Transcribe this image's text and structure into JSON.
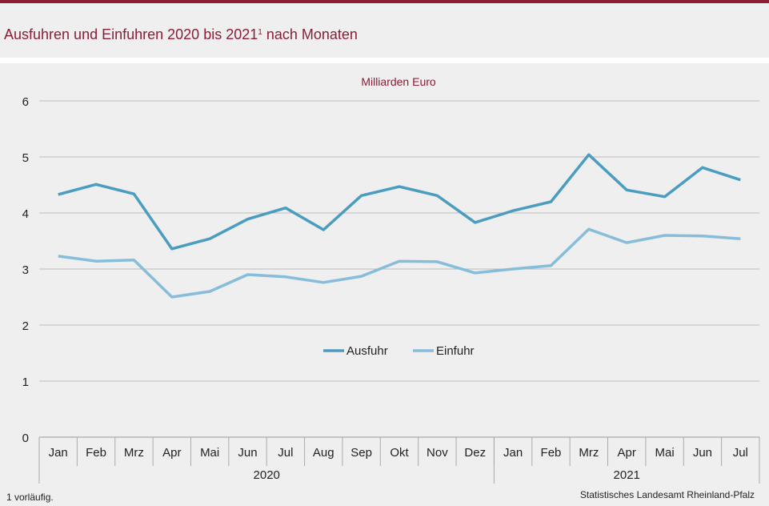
{
  "header": {
    "title": "Ausfuhren und Einfuhren 2020 bis 2021",
    "title_sup": "1",
    "title_suffix": " nach Monaten"
  },
  "footer": {
    "note": "1 vorläufig.",
    "source": "Statistisches Landesamt  Rheinland-Pfalz"
  },
  "colors": {
    "accent": "#8b1d36",
    "ausfuhr": "#4a9cc0",
    "einfuhr": "#86bddb"
  },
  "chart_data": {
    "type": "line",
    "title": "",
    "ylabel": "Milliarden Euro",
    "ylim": [
      0,
      6
    ],
    "yticks": [
      0,
      1,
      2,
      3,
      4,
      5,
      6
    ],
    "grid": true,
    "legend": "center",
    "categories": [
      "Jan",
      "Feb",
      "Mrz",
      "Apr",
      "Mai",
      "Jun",
      "Jul",
      "Aug",
      "Sep",
      "Okt",
      "Nov",
      "Dez",
      "Jan",
      "Feb",
      "Mrz",
      "Apr",
      "Mai",
      "Jun",
      "Jul"
    ],
    "groups": [
      {
        "label": "2020",
        "count": 12
      },
      {
        "label": "2021",
        "count": 7
      }
    ],
    "series": [
      {
        "name": "Ausfuhr",
        "values": [
          4.33,
          4.51,
          4.34,
          3.36,
          3.54,
          3.89,
          4.09,
          3.7,
          4.31,
          4.47,
          4.31,
          3.83,
          4.04,
          4.2,
          5.04,
          4.41,
          4.29,
          4.81,
          4.59
        ]
      },
      {
        "name": "Einfuhr",
        "values": [
          3.23,
          3.14,
          3.16,
          2.5,
          2.6,
          2.9,
          2.86,
          2.76,
          2.87,
          3.14,
          3.13,
          2.93,
          3.0,
          3.06,
          3.71,
          3.47,
          3.6,
          3.59,
          3.54
        ]
      }
    ]
  }
}
